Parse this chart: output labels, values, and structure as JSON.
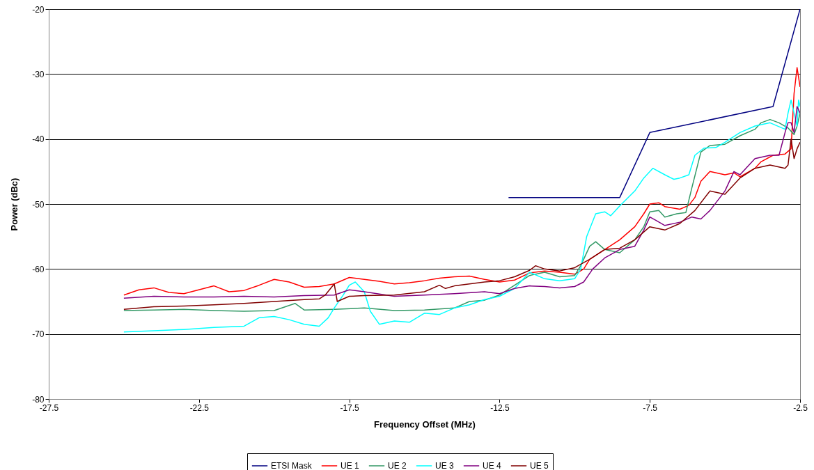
{
  "chart_data": {
    "type": "line",
    "xlabel": "Frequency Offset (MHz)",
    "ylabel": "Power (dBc)",
    "xlim": [
      -27.5,
      -2.5
    ],
    "xticks": [
      -27.5,
      -22.5,
      -17.5,
      -12.5,
      -7.5,
      -2.5
    ],
    "ylim": [
      -80,
      -20
    ],
    "yticks": [
      -80,
      -70,
      -60,
      -50,
      -40,
      -30,
      -20
    ],
    "grid": "y",
    "legend": "bottom",
    "marker": "none",
    "line_style": "solid",
    "series": [
      {
        "name": "ETSI Mask",
        "color": "#000080",
        "x": [
          -12.2,
          -8.5,
          -7.5,
          -3.4,
          -2.5
        ],
        "values": [
          -49,
          -49,
          -39,
          -35,
          -20
        ]
      },
      {
        "name": "UE 1",
        "color": "#ff0000",
        "x": [
          -25,
          -24.5,
          -24,
          -23.5,
          -23,
          -22,
          -21.5,
          -21,
          -20.5,
          -20,
          -19.5,
          -19,
          -18.5,
          -18,
          -17.5,
          -17,
          -16.5,
          -16,
          -15.5,
          -15,
          -14.5,
          -14,
          -13.5,
          -13,
          -12.5,
          -12,
          -11.5,
          -11,
          -10.5,
          -10,
          -9.7,
          -9.5,
          -9,
          -8.5,
          -8,
          -7.7,
          -7.5,
          -7.2,
          -7,
          -6.5,
          -6.2,
          -6,
          -5.8,
          -5.5,
          -5,
          -4.7,
          -4.5,
          -4,
          -3.8,
          -3.4,
          -3,
          -2.8,
          -2.7,
          -2.6,
          -2.5
        ],
        "values": [
          -64.0,
          -63.2,
          -62.9,
          -63.6,
          -63.8,
          -62.6,
          -63.5,
          -63.3,
          -62.5,
          -61.6,
          -62.0,
          -62.8,
          -62.7,
          -62.3,
          -61.3,
          -61.6,
          -61.9,
          -62.3,
          -62.1,
          -61.8,
          -61.4,
          -61.2,
          -61.1,
          -61.6,
          -62.0,
          -61.7,
          -60.6,
          -60.3,
          -60.5,
          -60.8,
          -60.0,
          -58.5,
          -57.0,
          -55.5,
          -53.5,
          -51.5,
          -50.0,
          -49.8,
          -50.4,
          -50.8,
          -50.2,
          -49.0,
          -46.5,
          -45.0,
          -45.5,
          -45.2,
          -45.8,
          -44.5,
          -43.5,
          -42.5,
          -42.3,
          -41.5,
          -33,
          -29,
          -32
        ]
      },
      {
        "name": "UE 2",
        "color": "#339966",
        "x": [
          -25,
          -24,
          -23,
          -22,
          -21,
          -20,
          -19.3,
          -19,
          -18,
          -17,
          -16,
          -15,
          -14,
          -13.5,
          -13,
          -12.5,
          -12,
          -11.5,
          -11,
          -10.5,
          -10,
          -9.8,
          -9.5,
          -9.3,
          -9,
          -8.5,
          -8,
          -7.7,
          -7.5,
          -7.2,
          -7,
          -6.6,
          -6.3,
          -6.1,
          -5.8,
          -5.5,
          -5,
          -4.5,
          -4,
          -3.8,
          -3.5,
          -3.2,
          -2.9,
          -2.7,
          -2.6,
          -2.5
        ],
        "values": [
          -66.4,
          -66.3,
          -66.2,
          -66.4,
          -66.5,
          -66.4,
          -65.3,
          -66.3,
          -66.2,
          -66.0,
          -66.4,
          -66.3,
          -66.0,
          -65.0,
          -64.8,
          -64.0,
          -62.5,
          -61.0,
          -60.5,
          -61.2,
          -61.0,
          -59.5,
          -56.5,
          -55.8,
          -57.0,
          -57.5,
          -55.5,
          -53.5,
          -51.2,
          -51.0,
          -52.0,
          -51.5,
          -51.3,
          -47.5,
          -42.0,
          -41.0,
          -40.8,
          -39.5,
          -38.5,
          -37.5,
          -37.0,
          -37.5,
          -38.3,
          -39.3,
          -38,
          -36
        ]
      },
      {
        "name": "UE 3",
        "color": "#00ffff",
        "x": [
          -25,
          -24,
          -23,
          -22,
          -21,
          -20.5,
          -20,
          -19.5,
          -19,
          -18.5,
          -18.2,
          -18,
          -17.7,
          -17.5,
          -17.3,
          -17,
          -16.8,
          -16.5,
          -16,
          -15.5,
          -15,
          -14.5,
          -14,
          -13.5,
          -13,
          -12.5,
          -12,
          -11.5,
          -11,
          -10.5,
          -10,
          -9.8,
          -9.6,
          -9.3,
          -9,
          -8.8,
          -8.5,
          -8,
          -7.7,
          -7.4,
          -7,
          -6.7,
          -6.5,
          -6.2,
          -6,
          -5.7,
          -5.3,
          -5,
          -4.5,
          -4,
          -3.5,
          -3,
          -2.9,
          -2.8,
          -2.7,
          -2.6,
          -2.55,
          -2.5
        ],
        "values": [
          -69.7,
          -69.5,
          -69.3,
          -69.0,
          -68.8,
          -67.5,
          -67.3,
          -67.8,
          -68.5,
          -68.8,
          -67.5,
          -66.0,
          -64.0,
          -62.5,
          -62.0,
          -63.5,
          -66.5,
          -68.5,
          -68.0,
          -68.2,
          -66.8,
          -67.0,
          -66.0,
          -65.5,
          -64.7,
          -64.2,
          -63.0,
          -60.5,
          -61.5,
          -61.8,
          -61.5,
          -60.0,
          -55.0,
          -51.5,
          -51.2,
          -51.8,
          -50.3,
          -48.0,
          -46.0,
          -44.5,
          -45.5,
          -46.2,
          -46.0,
          -45.5,
          -42.5,
          -41.4,
          -41.3,
          -40.5,
          -39.0,
          -38.0,
          -37.5,
          -38.5,
          -36,
          -34,
          -36,
          -38,
          -34,
          -35
        ]
      },
      {
        "name": "UE 4",
        "color": "#800080",
        "x": [
          -25,
          -24,
          -23,
          -22,
          -21,
          -20,
          -19,
          -18,
          -17.5,
          -17,
          -16,
          -15,
          -14,
          -13,
          -12.5,
          -12,
          -11.5,
          -11,
          -10.5,
          -10,
          -9.7,
          -9.4,
          -9,
          -8.5,
          -8,
          -7.7,
          -7.5,
          -7.3,
          -7,
          -6.5,
          -6.1,
          -5.8,
          -5.5,
          -5,
          -4.7,
          -4.5,
          -4,
          -3.5,
          -3.2,
          -3,
          -2.9,
          -2.8,
          -2.7,
          -2.6,
          -2.5
        ],
        "values": [
          -64.5,
          -64.2,
          -64.3,
          -64.3,
          -64.2,
          -64.3,
          -64.1,
          -64.0,
          -63.2,
          -63.5,
          -64.2,
          -64.0,
          -63.8,
          -63.5,
          -63.8,
          -63.0,
          -62.6,
          -62.7,
          -62.9,
          -62.7,
          -62.0,
          -60.0,
          -58.3,
          -57.0,
          -56.5,
          -54.0,
          -52.0,
          -52.5,
          -53.3,
          -52.8,
          -52.0,
          -52.3,
          -51.0,
          -48.0,
          -45.0,
          -45.5,
          -43.0,
          -42.5,
          -42.5,
          -39.0,
          -37.5,
          -37.5,
          -39,
          -35,
          -36
        ]
      },
      {
        "name": "UE 5",
        "color": "#800000",
        "x": [
          -25,
          -24,
          -23,
          -22,
          -21,
          -20,
          -19,
          -18.5,
          -18.3,
          -18,
          -17.9,
          -17.5,
          -17,
          -16,
          -15,
          -14.5,
          -14.3,
          -14,
          -13,
          -12.5,
          -12,
          -11.5,
          -11.3,
          -11,
          -10.5,
          -10,
          -9.5,
          -9,
          -8.5,
          -8,
          -7.5,
          -7,
          -6.5,
          -6,
          -5.5,
          -5,
          -4.5,
          -4,
          -3.5,
          -3,
          -2.9,
          -2.8,
          -2.7,
          -2.6,
          -2.5
        ],
        "values": [
          -66.2,
          -65.8,
          -65.7,
          -65.5,
          -65.3,
          -65.0,
          -64.7,
          -64.6,
          -64.0,
          -62.3,
          -65.0,
          -64.2,
          -64.1,
          -64.0,
          -63.5,
          -62.5,
          -63.0,
          -62.6,
          -62.0,
          -61.8,
          -61.2,
          -60.2,
          -59.5,
          -60.0,
          -60.3,
          -59.8,
          -58.5,
          -57.0,
          -56.8,
          -55.5,
          -53.5,
          -54.0,
          -53.0,
          -51.0,
          -48.0,
          -48.5,
          -46.0,
          -44.5,
          -44.0,
          -44.5,
          -44.0,
          -40.0,
          -43.0,
          -41.5,
          -40.5
        ]
      }
    ]
  }
}
